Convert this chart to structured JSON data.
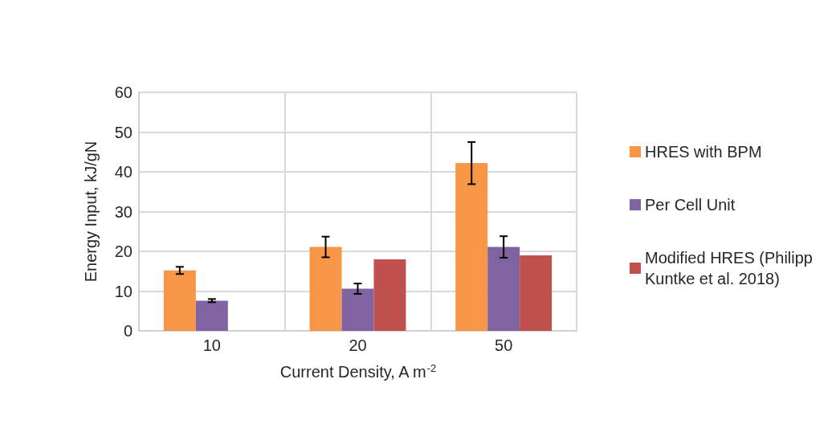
{
  "chart_data": {
    "type": "bar",
    "xlabel": "Current Density, A m$^{-2}$",
    "ylabel": "Energy Input, kJ/gN",
    "categories": [
      "10",
      "20",
      "50"
    ],
    "series": [
      {
        "name": "HRES with BPM",
        "color": "#f79646",
        "values": [
          15.2,
          21.1,
          42.2
        ],
        "errors": [
          0.9,
          2.6,
          5.3
        ]
      },
      {
        "name": "Per Cell Unit",
        "color": "#8064a2",
        "values": [
          7.6,
          10.6,
          21.1
        ],
        "errors": [
          0.4,
          1.3,
          2.7
        ]
      },
      {
        "name": "Modified HRES (Philipp Kuntke et al. 2018)",
        "color": "#c0504d",
        "values": [
          null,
          18.0,
          19.0
        ]
      }
    ],
    "ylim": [
      0,
      60
    ],
    "yticks": [
      0,
      10,
      20,
      30,
      40,
      50,
      60
    ],
    "grid": true,
    "legend": "right"
  }
}
